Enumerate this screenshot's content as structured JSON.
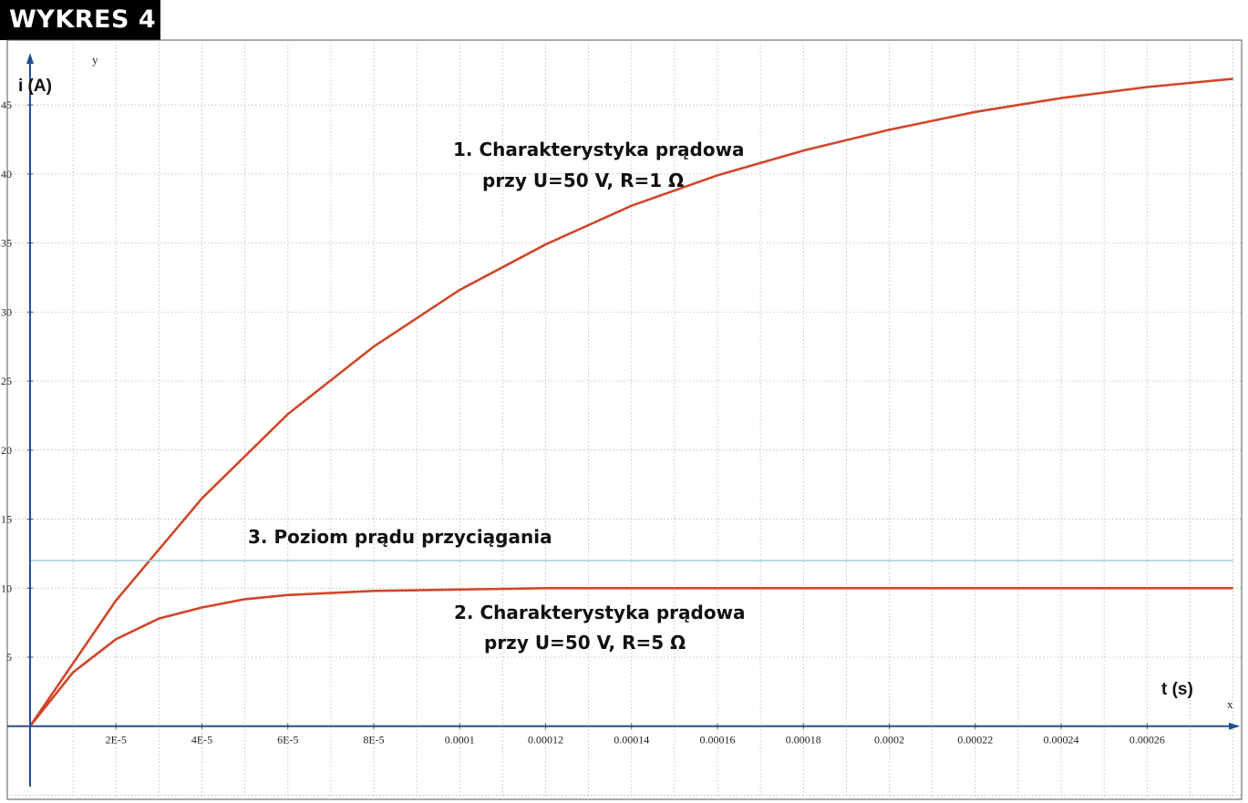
{
  "badge": {
    "text": "WYKRES 4"
  },
  "chart_data": {
    "type": "line",
    "xlabel": "t (s)",
    "ylabel": "i (A)",
    "x_axis_letter": "x",
    "y_axis_letter": "y",
    "xlim": [
      -5.3e-06,
      0.000282
    ],
    "ylim": [
      -5.3,
      49.7
    ],
    "x_ticks": [
      2e-05,
      4e-05,
      6e-05,
      8e-05,
      0.0001,
      0.00012,
      0.00014,
      0.00016,
      0.00018,
      0.0002,
      0.00022,
      0.00024,
      0.00026
    ],
    "x_tick_labels": [
      "2E-5",
      "4E-5",
      "6E-5",
      "8E-5",
      "0.0001",
      "0.00012",
      "0.00014",
      "0.00016",
      "0.00018",
      "0.0002",
      "0.00022",
      "0.00024",
      "0.00026"
    ],
    "y_ticks": [
      5,
      10,
      15,
      20,
      25,
      30,
      35,
      40,
      45
    ],
    "y_tick_labels": [
      "5",
      "10",
      "15",
      "20",
      "25",
      "30",
      "35",
      "40",
      "45"
    ],
    "grid": true,
    "series": [
      {
        "color": "#d1462a",
        "x": [
          0,
          2e-05,
          4e-05,
          6e-05,
          8e-05,
          0.0001,
          0.00012,
          0.00014,
          0.00016,
          0.00018,
          0.0002,
          0.00022,
          0.00024,
          0.00026,
          0.00028
        ],
        "y": [
          0,
          9.1,
          16.5,
          22.6,
          27.5,
          31.6,
          34.9,
          37.7,
          39.9,
          41.7,
          43.2,
          44.5,
          45.5,
          46.3,
          46.9
        ]
      },
      {
        "color": "#d1462a",
        "x": [
          0,
          1e-05,
          2e-05,
          3e-05,
          4e-05,
          5e-05,
          6e-05,
          8e-05,
          0.0001,
          0.00012,
          0.00016,
          0.0002,
          0.00028
        ],
        "y": [
          0,
          3.9,
          6.3,
          7.8,
          8.6,
          9.2,
          9.5,
          9.8,
          9.9,
          10,
          10,
          10,
          10
        ]
      },
      {
        "color": "#9fd0d4",
        "x": [
          0,
          0.00028
        ],
        "y": [
          12,
          12
        ]
      }
    ],
    "annotations": [
      {
        "lines": [
          "1. Charakterystyka prądowa",
          "przy  U=50 V, R=1 Ω"
        ]
      },
      {
        "lines": [
          "2. Charakterystyka prądowa",
          "przy  U=50 V, R=5 Ω"
        ]
      },
      {
        "lines": [
          "3. Poziom prądu przyciągania"
        ]
      }
    ]
  }
}
